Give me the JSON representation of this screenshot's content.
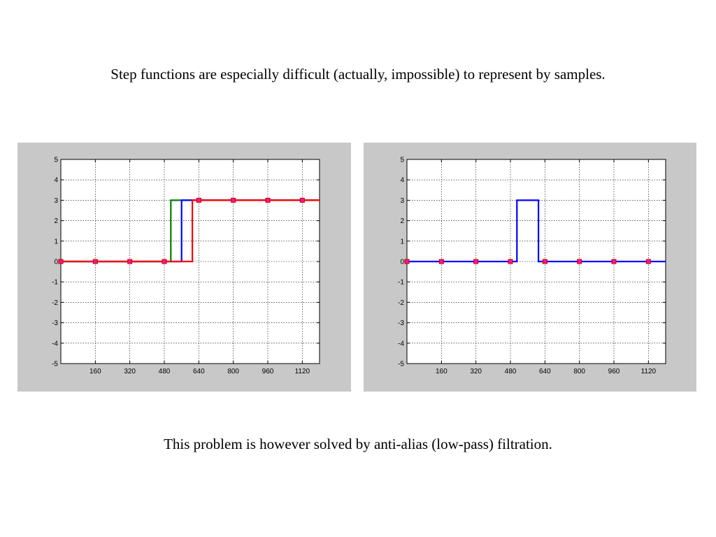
{
  "slide": {
    "top_caption": "Step functions are especially difficult (actually, impossible) to represent by samples.",
    "bottom_caption": "This problem is however solved by anti-alias (low-pass) filtration."
  },
  "colors": {
    "panel_background": "#c8c8c8",
    "plot_background": "#ffffff",
    "grid": "#000000",
    "green": "#008000",
    "blue": "#0000ff",
    "red": "#ff0000",
    "marker_fill": "#ff1493",
    "marker_edge": "#c00000"
  },
  "chart_data": [
    {
      "type": "line",
      "title": "",
      "xlabel": "",
      "ylabel": "",
      "xlim": [
        0,
        1200
      ],
      "ylim": [
        -5,
        5
      ],
      "x_ticks": [
        160,
        320,
        480,
        640,
        800,
        960,
        1120
      ],
      "y_ticks": [
        5,
        4,
        3,
        2,
        1,
        0,
        -1,
        -2,
        -3,
        -4,
        -5
      ],
      "grid": true,
      "series": [
        {
          "color": "green",
          "x": [
            0,
            510,
            510,
            1200
          ],
          "y": [
            0,
            0,
            3,
            3
          ]
        },
        {
          "color": "blue",
          "x": [
            0,
            560,
            560,
            1200
          ],
          "y": [
            0,
            0,
            3,
            3
          ]
        },
        {
          "color": "red",
          "x": [
            0,
            610,
            610,
            1200
          ],
          "y": [
            0,
            0,
            3,
            3
          ]
        }
      ],
      "markers": {
        "x": [
          0,
          160,
          320,
          480,
          640,
          800,
          960,
          1120
        ],
        "y": [
          0,
          0,
          0,
          0,
          3,
          3,
          3,
          3
        ]
      }
    },
    {
      "type": "line",
      "title": "",
      "xlabel": "",
      "ylabel": "",
      "xlim": [
        0,
        1200
      ],
      "ylim": [
        -5,
        5
      ],
      "x_ticks": [
        160,
        320,
        480,
        640,
        800,
        960,
        1120
      ],
      "y_ticks": [
        5,
        4,
        3,
        2,
        1,
        0,
        -1,
        -2,
        -3,
        -4,
        -5
      ],
      "grid": true,
      "series": [
        {
          "color": "blue",
          "x": [
            0,
            510,
            510,
            610,
            610,
            1200
          ],
          "y": [
            0,
            0,
            3,
            3,
            0,
            0
          ]
        }
      ],
      "markers": {
        "x": [
          0,
          160,
          320,
          480,
          640,
          800,
          960,
          1120
        ],
        "y": [
          0,
          0,
          0,
          0,
          0,
          0,
          0,
          0
        ]
      }
    }
  ]
}
